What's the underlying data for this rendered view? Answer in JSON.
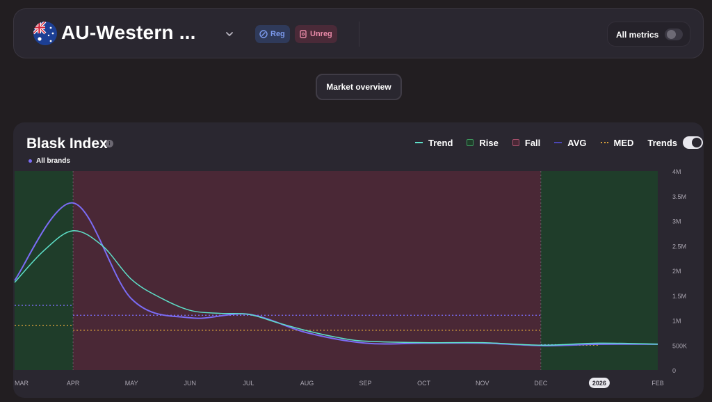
{
  "header": {
    "region_title": "AU-Western ...",
    "flag_icon": "australia-flag-icon",
    "badges": {
      "reg": "Reg",
      "unreg": "Unreg"
    },
    "all_metrics_label": "All metrics",
    "all_metrics_on": false
  },
  "market_overview_label": "Market overview",
  "chart_card": {
    "title": "Blask Index",
    "brands_label": "All brands",
    "legend": {
      "trend": "Trend",
      "rise": "Rise",
      "fall": "Fall",
      "avg": "AVG",
      "med": "MED",
      "trends": "Trends"
    },
    "trends_on": true
  },
  "colors": {
    "trend": "#5ee0c9",
    "rise": "#1f3d2a",
    "fall": "#4a2836",
    "index": "#7b6cf5",
    "avg": "#7b6cf5",
    "med": "#d9a13b"
  },
  "chart_data": {
    "type": "line",
    "title": "Blask Index",
    "x_labels": [
      "MAR",
      "APR",
      "MAY",
      "JUN",
      "JUL",
      "AUG",
      "SEP",
      "OCT",
      "NOV",
      "DEC",
      "2026",
      "FEB"
    ],
    "y_ticks": [
      "0",
      "500K",
      "1M",
      "1.5M",
      "2M",
      "2.5M",
      "3M",
      "3.5M",
      "4M"
    ],
    "ylim": [
      0,
      4000000
    ],
    "x_range": [
      0,
      11
    ],
    "series": [
      {
        "name": "All brands",
        "x": [
          0,
          1,
          2,
          3,
          4,
          5,
          6,
          7,
          8,
          9,
          9.5,
          10,
          11
        ],
        "values": [
          1800000,
          3360000,
          1430000,
          1050000,
          1120000,
          750000,
          540000,
          540000,
          540000,
          490000,
          500000,
          520000,
          520000
        ]
      },
      {
        "name": "Trend",
        "x": [
          0,
          0.5,
          1,
          1.5,
          2,
          2.5,
          3,
          3.5,
          4,
          4.5,
          5,
          5.5,
          6,
          7,
          8,
          9,
          10,
          11
        ],
        "values": [
          1760000,
          2400000,
          2800000,
          2500000,
          1820000,
          1450000,
          1200000,
          1140000,
          1120000,
          950000,
          790000,
          660000,
          580000,
          550000,
          550000,
          500000,
          540000,
          520000
        ]
      }
    ],
    "regions": [
      {
        "type": "Rise",
        "from": 0,
        "to": 1
      },
      {
        "type": "Fall",
        "from": 1,
        "to": 9
      },
      {
        "type": "Rise",
        "from": 9,
        "to": 11
      }
    ],
    "reference_lines": [
      {
        "type": "AVG",
        "from": 0,
        "to": 1,
        "value": 1300000
      },
      {
        "type": "MED",
        "from": 0,
        "to": 1,
        "value": 900000
      },
      {
        "type": "AVG",
        "from": 1,
        "to": 9,
        "value": 1100000
      },
      {
        "type": "MED",
        "from": 1,
        "to": 9,
        "value": 800000
      },
      {
        "type": "AVG",
        "from": 9,
        "to": 10,
        "value": 510000
      },
      {
        "type": "MED",
        "from": 9,
        "to": 10,
        "value": 500000
      }
    ],
    "highlighted_label": "2026",
    "grid": false,
    "legend_position": "top-right"
  }
}
